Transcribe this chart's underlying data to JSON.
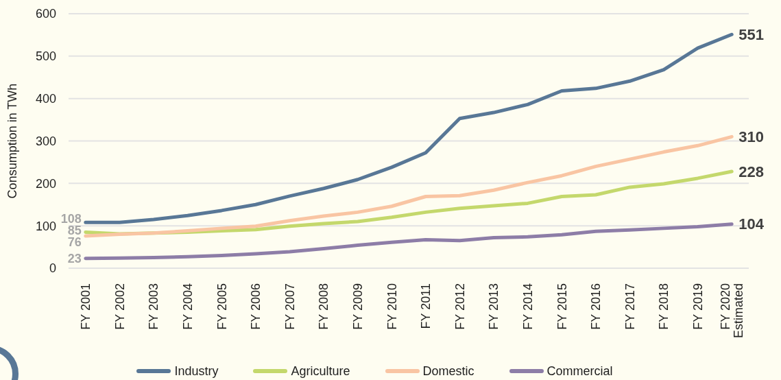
{
  "chart_data": {
    "type": "line",
    "ylabel": "Consumption in TWh",
    "categories": [
      "FY 2001",
      "FY 2002",
      "FY 2003",
      "FY 2004",
      "FY 2005",
      "FY 2006",
      "FY 2007",
      "FY 2008",
      "FY 2009",
      "FY 2010",
      "FY 2011",
      "FY 2012",
      "FY 2013",
      "FY 2014",
      "FY 2015",
      "FY 2016",
      "FY 2017",
      "FY 2018",
      "FY 2019",
      "FY 2020\nEstimated"
    ],
    "series": [
      {
        "name": "Industry",
        "color": "#587796",
        "values": [
          108,
          108,
          115,
          124,
          136,
          150,
          170,
          188,
          209,
          238,
          272,
          353,
          367,
          386,
          418,
          424,
          441,
          468,
          519,
          551
        ],
        "value_labels": [
          "108",
          null,
          null,
          null,
          null,
          null,
          null,
          null,
          null,
          null,
          null,
          null,
          null,
          null,
          null,
          null,
          null,
          null,
          null,
          "551"
        ]
      },
      {
        "name": "Agriculture",
        "color": "#c4d86c",
        "values": [
          85,
          81,
          83,
          85,
          88,
          91,
          99,
          105,
          110,
          120,
          132,
          141,
          147,
          153,
          169,
          173,
          191,
          199,
          212,
          228
        ],
        "value_labels": [
          "85",
          null,
          null,
          null,
          null,
          null,
          null,
          null,
          null,
          null,
          null,
          null,
          null,
          null,
          null,
          null,
          null,
          null,
          null,
          "228"
        ]
      },
      {
        "name": "Domestic",
        "color": "#f9c5a3",
        "values": [
          76,
          80,
          83,
          88,
          94,
          99,
          112,
          123,
          132,
          146,
          169,
          171,
          184,
          202,
          218,
          240,
          257,
          274,
          289,
          310
        ],
        "value_labels": [
          "76",
          null,
          null,
          null,
          null,
          null,
          null,
          null,
          null,
          null,
          null,
          null,
          null,
          null,
          null,
          null,
          null,
          null,
          null,
          "310"
        ]
      },
      {
        "name": "Commercial",
        "color": "#8d7da7",
        "values": [
          23,
          24,
          25,
          27,
          30,
          34,
          39,
          46,
          54,
          61,
          67,
          65,
          72,
          74,
          79,
          87,
          90,
          94,
          98,
          104
        ],
        "value_labels": [
          "23",
          null,
          null,
          null,
          null,
          null,
          null,
          null,
          null,
          null,
          null,
          null,
          null,
          null,
          null,
          null,
          null,
          null,
          null,
          "104"
        ]
      }
    ],
    "ylim": [
      0,
      600
    ],
    "yticks": [
      0,
      100,
      200,
      300,
      400,
      500,
      600
    ],
    "grid": "y",
    "legend": "bottom",
    "marker": "none",
    "line_style": "solid"
  }
}
